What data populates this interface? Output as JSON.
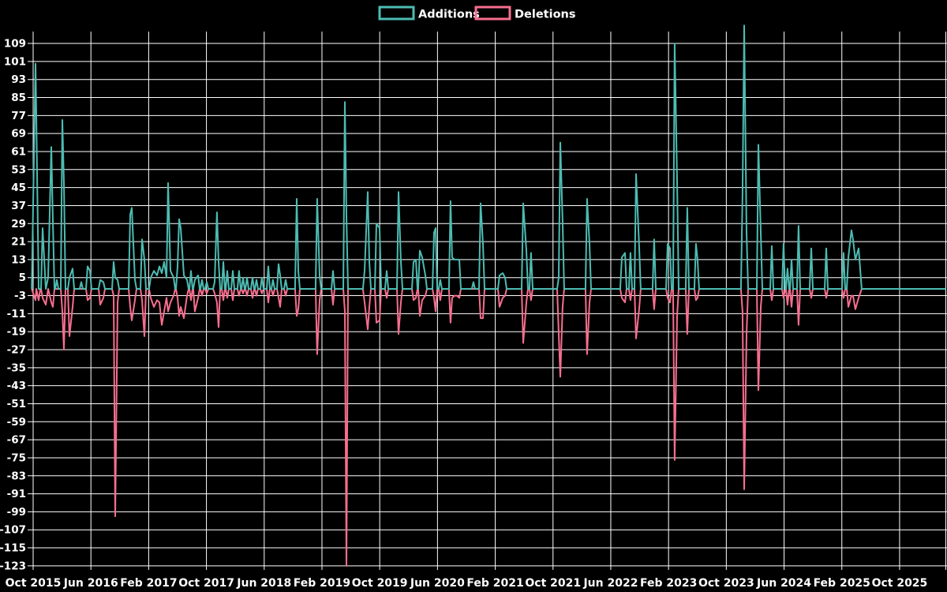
{
  "legend": {
    "additions_label": "Additions",
    "deletions_label": "Deletions"
  },
  "colors": {
    "background": "#000000",
    "grid": "#ffffff",
    "text": "#ffffff",
    "additions": "#4cbcb2",
    "deletions": "#f76e8e"
  },
  "chart_data": {
    "type": "line",
    "title": "",
    "xlabel": "",
    "ylabel": "",
    "grid": true,
    "legend_position": "top-center",
    "series": [
      {
        "name": "Additions",
        "color": "#4cbcb2"
      },
      {
        "name": "Deletions",
        "color": "#f76e8e"
      }
    ],
    "x_axis": {
      "unit": "months since Oct 2015",
      "tick_interval_months": 8,
      "tick_labels": [
        "Oct 2015",
        "Jun 2016",
        "Feb 2017",
        "Oct 2017",
        "Jun 2018",
        "Feb 2019",
        "Oct 2019",
        "Jun 2020",
        "Feb 2021",
        "Oct 2021",
        "Jun 2022",
        "Feb 2023",
        "Oct 2023",
        "Jun 2024",
        "Feb 2025",
        "Oct 2025"
      ],
      "range_months": [
        0,
        126.4
      ]
    },
    "y_axis": {
      "min": -123,
      "max": 109,
      "step": 8,
      "ticks": [
        109,
        101,
        93,
        85,
        77,
        69,
        61,
        53,
        45,
        37,
        29,
        21,
        13,
        5,
        -3,
        -11,
        -19,
        -27,
        -35,
        -43,
        -51,
        -59,
        -67,
        -75,
        -83,
        -91,
        -99,
        -107,
        -115,
        -123
      ]
    },
    "points_format": [
      "months_since_oct_2015",
      "additions",
      "deletions"
    ],
    "baseline_value": 0,
    "last_data_month": 114.75,
    "points": [
      [
        0.33,
        100,
        -5
      ],
      [
        0.44,
        77,
        0
      ],
      [
        0.77,
        0,
        -5
      ],
      [
        1.31,
        27,
        -4
      ],
      [
        1.75,
        0,
        -7
      ],
      [
        2.08,
        5,
        0
      ],
      [
        2.51,
        63,
        -6
      ],
      [
        2.73,
        30,
        -8
      ],
      [
        3.28,
        4,
        0
      ],
      [
        4.04,
        75,
        -10
      ],
      [
        4.26,
        47,
        -27
      ],
      [
        5.03,
        5,
        -21
      ],
      [
        5.46,
        9,
        -8
      ],
      [
        6.67,
        3,
        0
      ],
      [
        7.54,
        10,
        -5
      ],
      [
        7.87,
        8,
        -4
      ],
      [
        9.29,
        4,
        -7
      ],
      [
        9.73,
        3,
        -4
      ],
      [
        11.15,
        12,
        -3
      ],
      [
        11.37,
        5,
        -101
      ],
      [
        11.69,
        4,
        -6
      ],
      [
        13.44,
        33,
        -8
      ],
      [
        13.66,
        36,
        -14
      ],
      [
        14.1,
        4,
        -5
      ],
      [
        15.08,
        22,
        -5
      ],
      [
        15.41,
        13,
        -21
      ],
      [
        16.28,
        5,
        -4
      ],
      [
        16.72,
        8,
        -8
      ],
      [
        17.16,
        6,
        -5
      ],
      [
        17.49,
        10,
        -6
      ],
      [
        17.81,
        7,
        -16
      ],
      [
        18.14,
        12,
        -10
      ],
      [
        18.47,
        5,
        -4
      ],
      [
        18.69,
        47,
        -10
      ],
      [
        19.02,
        8,
        -6
      ],
      [
        19.45,
        5,
        -3
      ],
      [
        20.0,
        10,
        -4
      ],
      [
        20.22,
        31,
        -12
      ],
      [
        20.44,
        27,
        -8
      ],
      [
        20.87,
        6,
        -13
      ],
      [
        21.31,
        4,
        -3
      ],
      [
        21.86,
        8,
        -5
      ],
      [
        22.4,
        4,
        -10
      ],
      [
        22.84,
        6,
        -4
      ],
      [
        23.39,
        4,
        -3
      ],
      [
        24.04,
        3,
        -2
      ],
      [
        25.14,
        3,
        -2
      ],
      [
        25.46,
        34,
        -6
      ],
      [
        25.68,
        12,
        -17
      ],
      [
        26.34,
        12,
        -5
      ],
      [
        26.89,
        8,
        -4
      ],
      [
        27.65,
        8,
        -5
      ],
      [
        28.52,
        8,
        -3
      ],
      [
        29.07,
        5,
        -2
      ],
      [
        29.62,
        5,
        -3
      ],
      [
        30.38,
        5,
        -4
      ],
      [
        30.93,
        4,
        -3
      ],
      [
        31.69,
        5,
        -2
      ],
      [
        32.57,
        10,
        -6
      ],
      [
        33.22,
        4,
        -3
      ],
      [
        33.99,
        11,
        -4
      ],
      [
        34.21,
        6,
        -8
      ],
      [
        34.97,
        4,
        -3
      ],
      [
        36.5,
        40,
        -12
      ],
      [
        36.72,
        8,
        -9
      ],
      [
        39.34,
        40,
        -29
      ],
      [
        39.67,
        6,
        -5
      ],
      [
        41.53,
        8,
        -7
      ],
      [
        43.17,
        83,
        -10
      ],
      [
        43.39,
        32,
        -123
      ],
      [
        45.9,
        8,
        -6
      ],
      [
        46.34,
        43,
        -18
      ],
      [
        46.56,
        12,
        -8
      ],
      [
        47.54,
        29,
        -15
      ],
      [
        47.98,
        27,
        -14
      ],
      [
        48.96,
        8,
        -4
      ],
      [
        50.6,
        43,
        -20
      ],
      [
        50.93,
        12,
        -6
      ],
      [
        52.68,
        12,
        -5
      ],
      [
        53.01,
        13,
        -4
      ],
      [
        53.55,
        17,
        -12
      ],
      [
        53.88,
        14,
        -5
      ],
      [
        54.32,
        6,
        -3
      ],
      [
        55.52,
        25,
        -4
      ],
      [
        55.74,
        27,
        -10
      ],
      [
        56.39,
        4,
        -5
      ],
      [
        57.81,
        39,
        -15
      ],
      [
        58.03,
        14,
        -4
      ],
      [
        58.36,
        13,
        -3
      ],
      [
        58.69,
        13,
        -3
      ],
      [
        59.02,
        13,
        -4
      ],
      [
        60.98,
        3,
        0
      ],
      [
        61.97,
        38,
        -13
      ],
      [
        62.3,
        20,
        -13
      ],
      [
        64.59,
        6,
        -8
      ],
      [
        65.03,
        7,
        -4
      ],
      [
        65.36,
        5,
        -3
      ],
      [
        67.87,
        38,
        -24
      ],
      [
        68.31,
        17,
        -6
      ],
      [
        68.96,
        16,
        -5
      ],
      [
        72.79,
        5,
        -20
      ],
      [
        73.01,
        65,
        -39
      ],
      [
        73.33,
        30,
        -8
      ],
      [
        76.72,
        40,
        -29
      ],
      [
        77.05,
        20,
        -6
      ],
      [
        81.53,
        14,
        -4
      ],
      [
        81.97,
        16,
        -6
      ],
      [
        82.73,
        16,
        -5
      ],
      [
        83.5,
        51,
        -22
      ],
      [
        83.93,
        19,
        -9
      ],
      [
        86.01,
        22,
        -9
      ],
      [
        87.87,
        20,
        -4
      ],
      [
        88.2,
        18,
        -6
      ],
      [
        88.85,
        109,
        -76
      ],
      [
        89.18,
        48,
        -12
      ],
      [
        90.6,
        36,
        -20
      ],
      [
        91.8,
        20,
        -5
      ],
      [
        92.02,
        13,
        -4
      ],
      [
        98.25,
        42,
        -10
      ],
      [
        98.47,
        117,
        -89
      ],
      [
        98.8,
        25,
        -20
      ],
      [
        100.44,
        64,
        -45
      ],
      [
        100.77,
        25,
        -8
      ],
      [
        102.3,
        19,
        -5
      ],
      [
        103.93,
        20,
        -4
      ],
      [
        104.48,
        9,
        -7
      ],
      [
        105.03,
        13,
        -8
      ],
      [
        106.01,
        28,
        -16
      ],
      [
        107.76,
        18,
        -4
      ],
      [
        109.84,
        18,
        -4
      ],
      [
        112.24,
        16,
        -4
      ],
      [
        112.9,
        14,
        -8
      ],
      [
        113.33,
        26,
        -3
      ],
      [
        113.55,
        22,
        -3
      ],
      [
        113.88,
        13,
        -9
      ],
      [
        114.32,
        18,
        -4
      ],
      [
        114.75,
        0,
        0
      ]
    ]
  }
}
